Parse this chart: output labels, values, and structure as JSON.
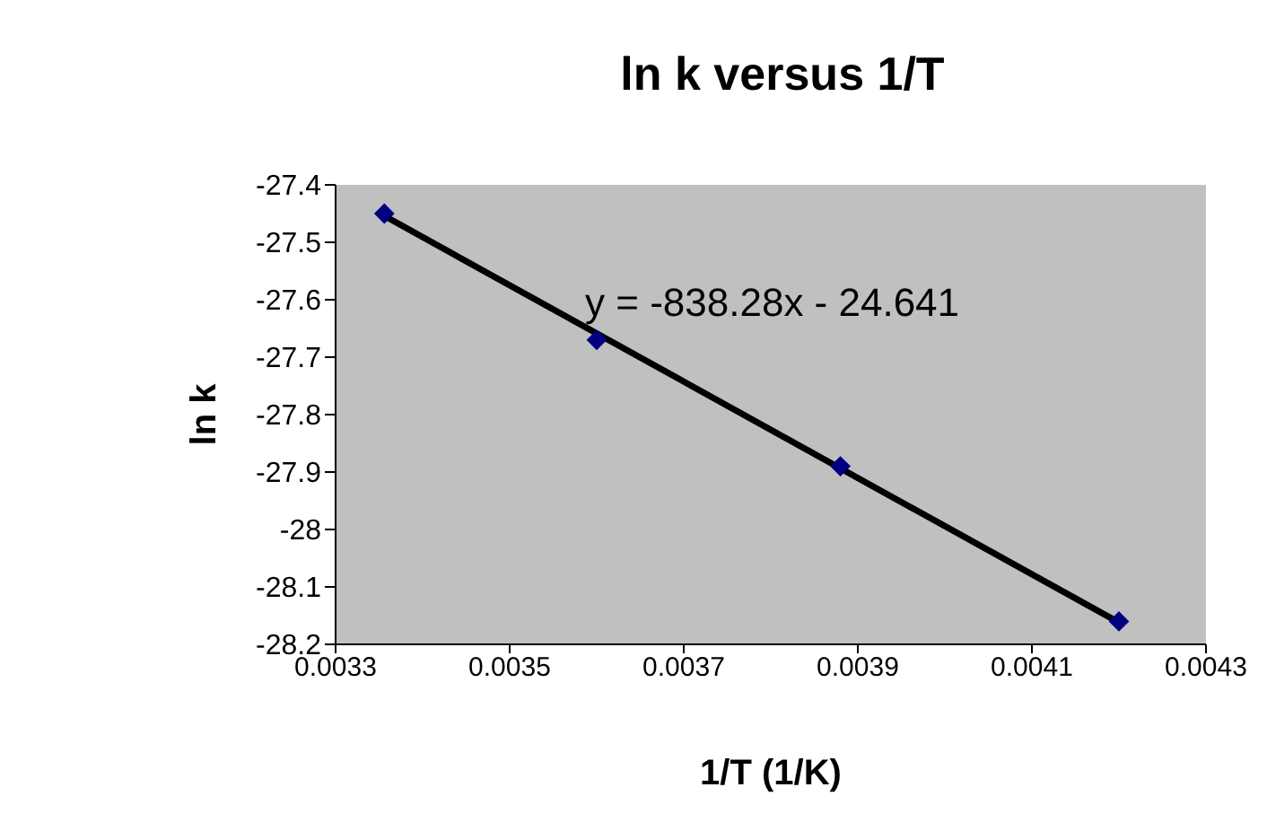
{
  "chart_data": {
    "type": "scatter",
    "title": "ln k versus 1/T",
    "xlabel": "1/T (1/K)",
    "ylabel": "ln k",
    "x": [
      0.003356,
      0.0036,
      0.00388,
      0.0042
    ],
    "series": [
      {
        "color": "#000080",
        "marker": "diamond",
        "values": [
          -27.45,
          -27.67,
          -27.89,
          -28.16
        ]
      },
      {
        "type": "line",
        "color": "#000000",
        "x": [
          0.003356,
          0.0042
        ],
        "values": [
          -27.454,
          -28.162
        ]
      }
    ],
    "annotations": [
      "y = -838.28x - 24.641"
    ],
    "xlim": [
      0.0033,
      0.0043
    ],
    "xticks": [
      0.0033,
      0.0035,
      0.0037,
      0.0039,
      0.0041,
      0.0043
    ],
    "ylim": [
      -28.2,
      -27.4
    ],
    "yticks": [
      -28.2,
      -28.1,
      -28,
      -27.9,
      -27.8,
      -27.7,
      -27.6,
      -27.5,
      -27.4
    ],
    "grid": false
  }
}
